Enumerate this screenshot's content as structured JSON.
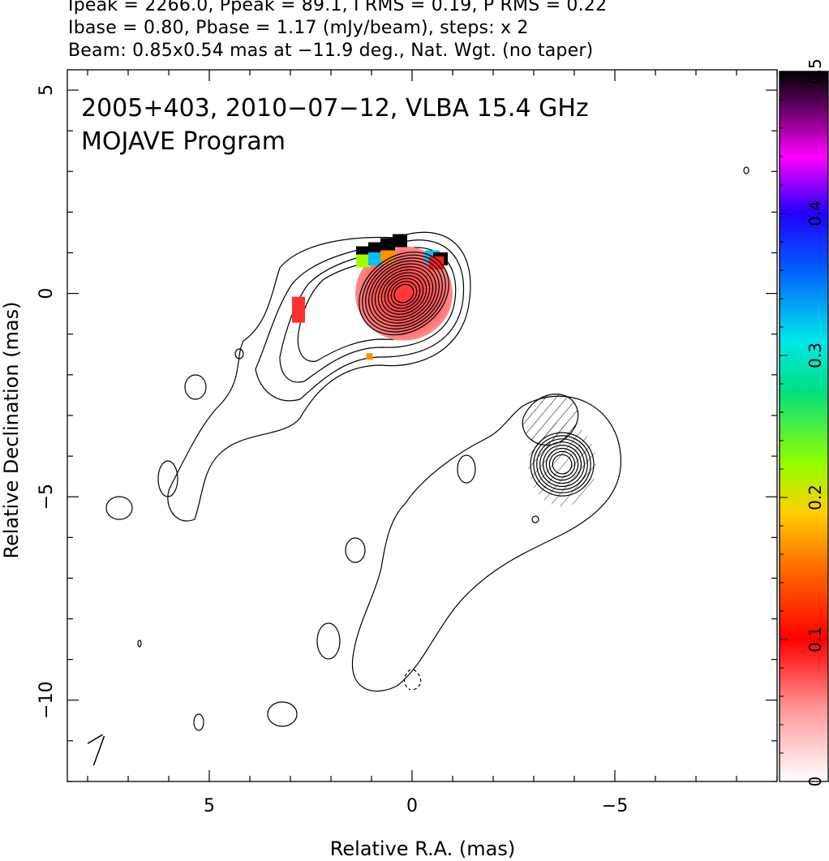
{
  "header": {
    "line1": "Ipeak = 2266.0, Ppeak = 89.1, I RMS = 0.19, P RMS = 0.22",
    "line2": "Ibase = 0.80, Pbase = 1.17 (mJy/beam), steps: x 2",
    "line3": "Beam: 0.85x0.54 mas at −11.9 deg., Nat. Wgt. (no taper)"
  },
  "chart_data": {
    "type": "heatmap",
    "annotation_line1": "2005+403, 2010−07−12, VLBA 15.4 GHz",
    "annotation_line2": "MOJAVE Program",
    "xlabel": "Relative R.A. (mas)",
    "ylabel": "Relative Declination (mas)",
    "xlim": [
      8.5,
      -9
    ],
    "ylim": [
      -12,
      5.5
    ],
    "x_ticks": [
      5,
      0,
      -5
    ],
    "y_ticks": [
      5,
      0,
      -5,
      -10
    ],
    "x_tick_labels": [
      "5",
      "0",
      "−5"
    ],
    "y_tick_labels": [
      "5",
      "0",
      "−5",
      "−10"
    ],
    "colorbar": {
      "range": [
        0,
        0.5
      ],
      "ticks": [
        0,
        0.1,
        0.2,
        0.3,
        0.4,
        0.5
      ],
      "tick_labels": [
        "0",
        "0.1",
        "0.2",
        "0.3",
        "0.4",
        "0.5"
      ]
    },
    "contour_groups": [
      {
        "name": "core",
        "center": [
          0.2,
          0
        ],
        "levels": 12,
        "size": [
          1.1,
          0.85
        ],
        "pa_deg": -35
      },
      {
        "name": "component",
        "center": [
          -3.7,
          -4.2
        ],
        "levels": 8,
        "size": [
          0.7,
          0.7
        ],
        "pa_deg": -15
      }
    ],
    "polarization_features": [
      {
        "x": 0.2,
        "y": 0,
        "fraction": 0.04
      },
      {
        "x": 2.7,
        "y": -0.4,
        "fraction": 0.08
      },
      {
        "x": 1.0,
        "y": 1.0,
        "fraction": 0.5
      },
      {
        "x": 1.1,
        "y": -1.6,
        "fraction": 0.14
      }
    ],
    "beam": {
      "major_mas": 0.85,
      "minor_mas": 0.54,
      "pa_deg": -11.9
    }
  }
}
